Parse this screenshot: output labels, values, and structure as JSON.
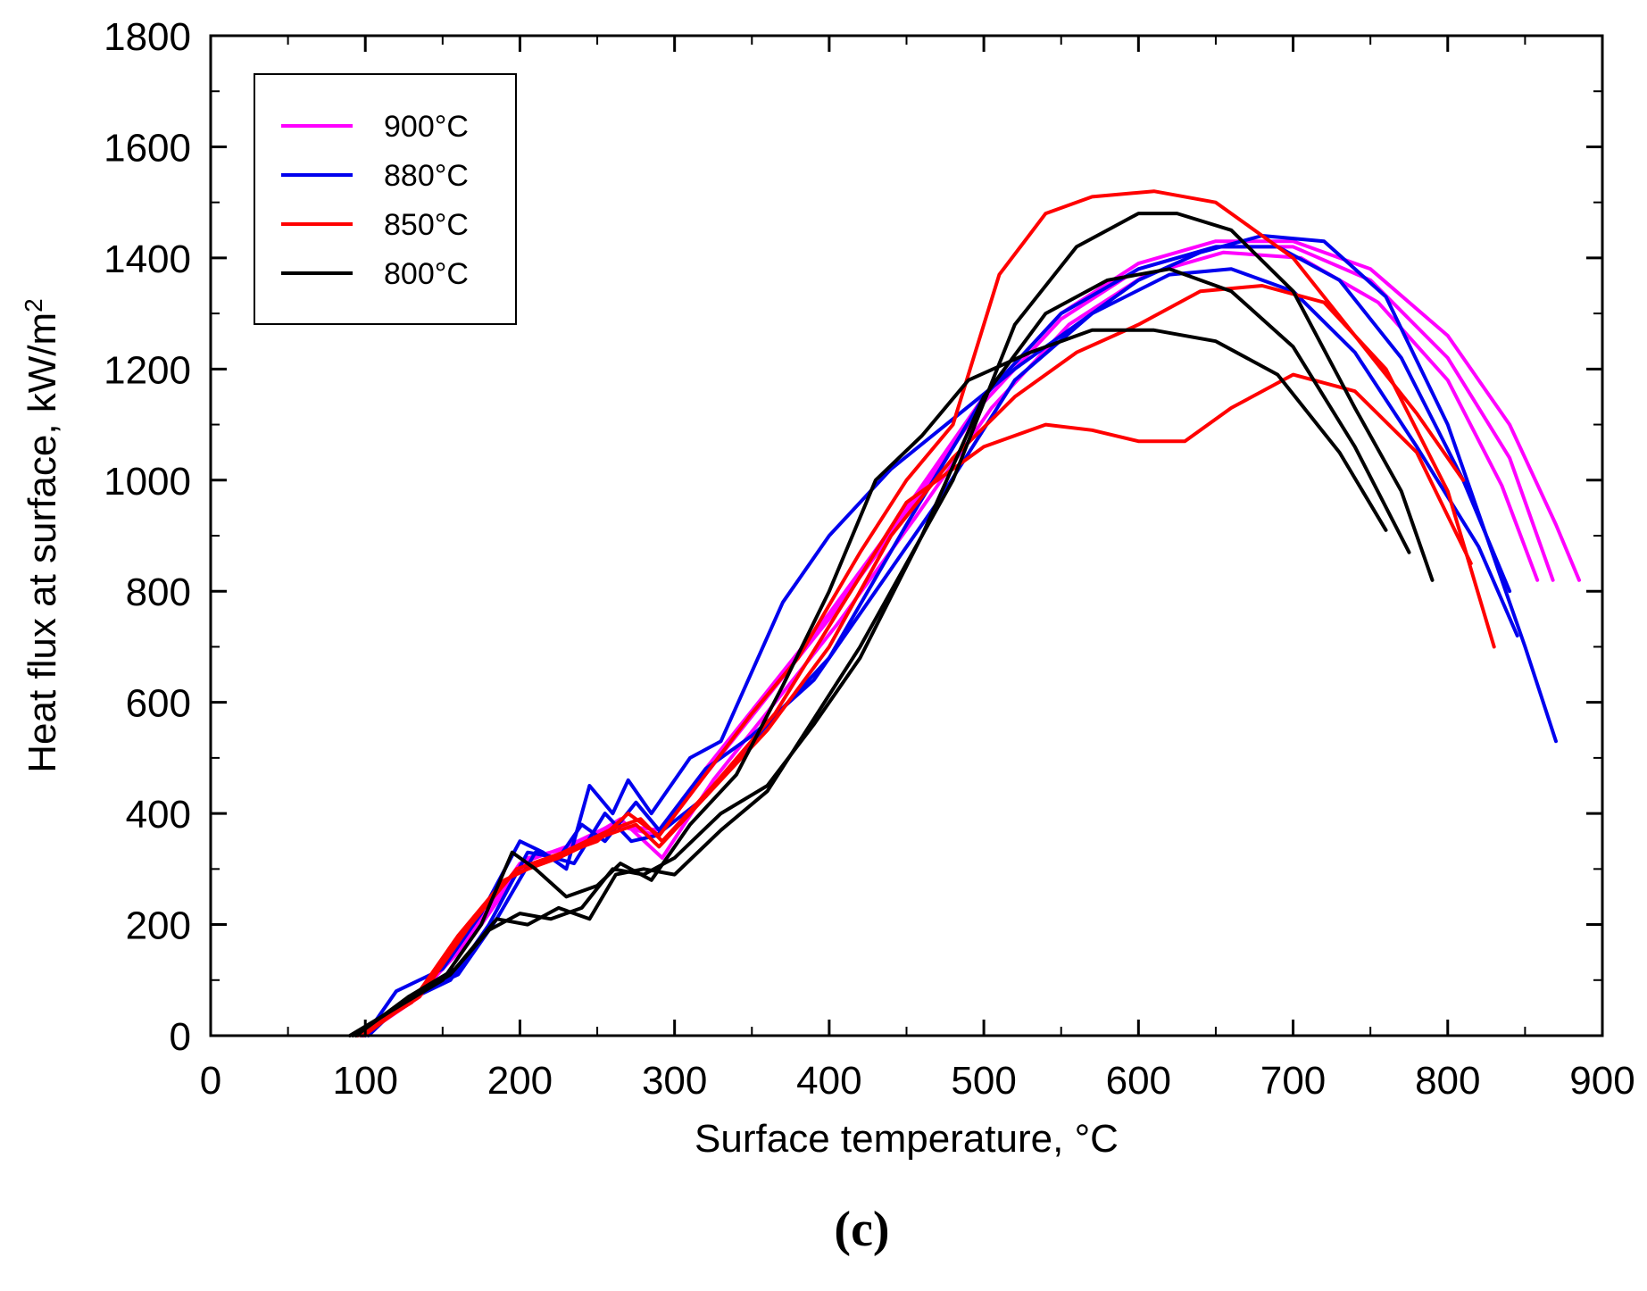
{
  "chart_data": {
    "type": "line",
    "panel_label": "(c)",
    "xlabel": "Surface temperature, °C",
    "ylabel": "Heat flux at surface, kW/m",
    "ylabel_superscript": "2",
    "xlim": [
      0,
      900
    ],
    "ylim": [
      0,
      1800
    ],
    "x_ticks": [
      0,
      100,
      200,
      300,
      400,
      500,
      600,
      700,
      800,
      900
    ],
    "y_ticks": [
      0,
      200,
      400,
      600,
      800,
      1000,
      1200,
      1400,
      1600,
      1800
    ],
    "grid": false,
    "legend_position": "top-left",
    "legend": [
      {
        "label": "900°C",
        "color": "#ff00ff"
      },
      {
        "label": "880°C",
        "color": "#0000ee"
      },
      {
        "label": "850°C",
        "color": "#ff0000"
      },
      {
        "label": "800°C",
        "color": "#000000"
      }
    ],
    "series": [
      {
        "group": "900°C",
        "color": "#ff00ff",
        "x": [
          95,
          130,
          170,
          200,
          230,
          260,
          290,
          320,
          360,
          400,
          450,
          500,
          550,
          600,
          650,
          700,
          750,
          800,
          840,
          870,
          885
        ],
        "y": [
          0,
          60,
          180,
          300,
          330,
          380,
          370,
          480,
          620,
          760,
          950,
          1150,
          1300,
          1390,
          1430,
          1430,
          1380,
          1260,
          1100,
          920,
          820
        ]
      },
      {
        "group": "900°C",
        "color": "#ff00ff",
        "x": [
          98,
          135,
          170,
          200,
          230,
          260,
          290,
          320,
          360,
          400,
          450,
          500,
          550,
          600,
          650,
          700,
          750,
          800,
          840,
          868
        ],
        "y": [
          0,
          70,
          190,
          310,
          340,
          380,
          360,
          470,
          610,
          750,
          940,
          1140,
          1290,
          1380,
          1420,
          1420,
          1360,
          1220,
          1040,
          820
        ]
      },
      {
        "group": "900°C",
        "color": "#ff00ff",
        "x": [
          100,
          135,
          175,
          205,
          235,
          265,
          292,
          325,
          365,
          405,
          455,
          505,
          555,
          605,
          655,
          705,
          755,
          800,
          835,
          858
        ],
        "y": [
          0,
          80,
          200,
          320,
          340,
          390,
          320,
          460,
          600,
          740,
          930,
          1130,
          1280,
          1370,
          1410,
          1400,
          1320,
          1180,
          990,
          820
        ]
      },
      {
        "group": "880°C",
        "color": "#0000ee",
        "x": [
          100,
          120,
          150,
          175,
          200,
          215,
          230,
          245,
          260,
          270,
          285,
          310,
          330,
          370,
          400,
          440,
          480,
          520,
          560,
          600,
          640,
          680,
          720,
          760,
          800,
          830,
          850,
          870
        ],
        "y": [
          0,
          80,
          120,
          220,
          350,
          330,
          300,
          450,
          400,
          460,
          400,
          500,
          530,
          780,
          900,
          1020,
          1110,
          1200,
          1280,
          1360,
          1410,
          1440,
          1430,
          1330,
          1100,
          860,
          700,
          530
        ]
      },
      {
        "group": "880°C",
        "color": "#0000ee",
        "x": [
          98,
          125,
          155,
          180,
          205,
          225,
          240,
          255,
          275,
          290,
          320,
          350,
          390,
          430,
          470,
          520,
          570,
          620,
          660,
          700,
          740,
          780,
          820,
          845
        ],
        "y": [
          0,
          60,
          100,
          200,
          330,
          320,
          380,
          350,
          420,
          370,
          480,
          540,
          640,
          800,
          960,
          1180,
          1300,
          1370,
          1380,
          1340,
          1230,
          1060,
          880,
          720
        ]
      },
      {
        "group": "880°C",
        "color": "#0000ee",
        "x": [
          102,
          128,
          160,
          185,
          210,
          235,
          255,
          272,
          288,
          320,
          360,
          400,
          450,
          500,
          550,
          600,
          650,
          690,
          730,
          770,
          810,
          840
        ],
        "y": [
          0,
          70,
          110,
          210,
          330,
          310,
          400,
          350,
          360,
          430,
          560,
          680,
          920,
          1150,
          1300,
          1380,
          1420,
          1420,
          1360,
          1220,
          1000,
          800
        ]
      },
      {
        "group": "850°C",
        "color": "#ff0000",
        "x": [
          95,
          130,
          160,
          190,
          220,
          250,
          270,
          290,
          320,
          350,
          380,
          420,
          450,
          480,
          510,
          540,
          570,
          610,
          650,
          700,
          740,
          780,
          810
        ],
        "y": [
          0,
          60,
          180,
          280,
          320,
          350,
          400,
          360,
          470,
          580,
          680,
          870,
          1000,
          1100,
          1370,
          1480,
          1510,
          1520,
          1500,
          1400,
          1260,
          1120,
          1000
        ]
      },
      {
        "group": "850°C",
        "color": "#ff0000",
        "x": [
          97,
          135,
          165,
          195,
          225,
          255,
          275,
          290,
          320,
          360,
          400,
          440,
          480,
          520,
          560,
          600,
          640,
          680,
          720,
          760,
          800,
          830
        ],
        "y": [
          0,
          70,
          190,
          290,
          320,
          360,
          380,
          340,
          430,
          550,
          700,
          900,
          1040,
          1150,
          1230,
          1280,
          1340,
          1350,
          1320,
          1200,
          980,
          700
        ]
      },
      {
        "group": "850°C",
        "color": "#ff0000",
        "x": [
          99,
          138,
          168,
          198,
          228,
          258,
          278,
          292,
          325,
          365,
          405,
          450,
          500,
          540,
          570,
          600,
          630,
          660,
          700,
          740,
          780,
          815
        ],
        "y": [
          0,
          80,
          200,
          300,
          330,
          370,
          390,
          350,
          450,
          580,
          760,
          960,
          1060,
          1100,
          1090,
          1070,
          1070,
          1130,
          1190,
          1160,
          1050,
          850
        ]
      },
      {
        "group": "800°C",
        "color": "#000000",
        "x": [
          90,
          120,
          150,
          175,
          195,
          210,
          230,
          250,
          265,
          285,
          310,
          340,
          370,
          400,
          430,
          460,
          490,
          530,
          570,
          610,
          650,
          690,
          730,
          760
        ],
        "y": [
          0,
          50,
          100,
          200,
          330,
          300,
          250,
          270,
          310,
          280,
          380,
          470,
          630,
          800,
          1000,
          1080,
          1180,
          1230,
          1270,
          1270,
          1250,
          1190,
          1050,
          910
        ]
      },
      {
        "group": "800°C",
        "color": "#000000",
        "x": [
          92,
          125,
          155,
          180,
          200,
          220,
          240,
          260,
          280,
          300,
          330,
          360,
          390,
          420,
          460,
          500,
          540,
          580,
          620,
          660,
          700,
          740,
          775
        ],
        "y": [
          0,
          60,
          110,
          190,
          220,
          210,
          230,
          300,
          290,
          320,
          400,
          450,
          560,
          680,
          900,
          1150,
          1300,
          1360,
          1380,
          1340,
          1240,
          1060,
          870
        ]
      },
      {
        "group": "800°C",
        "color": "#000000",
        "x": [
          94,
          128,
          158,
          185,
          205,
          225,
          245,
          262,
          280,
          300,
          330,
          360,
          390,
          420,
          450,
          480,
          520,
          560,
          600,
          625,
          660,
          700,
          740,
          770,
          790
        ],
        "y": [
          0,
          70,
          120,
          210,
          200,
          230,
          210,
          290,
          300,
          290,
          370,
          440,
          570,
          700,
          850,
          1000,
          1280,
          1420,
          1480,
          1480,
          1450,
          1340,
          1130,
          980,
          820
        ]
      }
    ]
  }
}
